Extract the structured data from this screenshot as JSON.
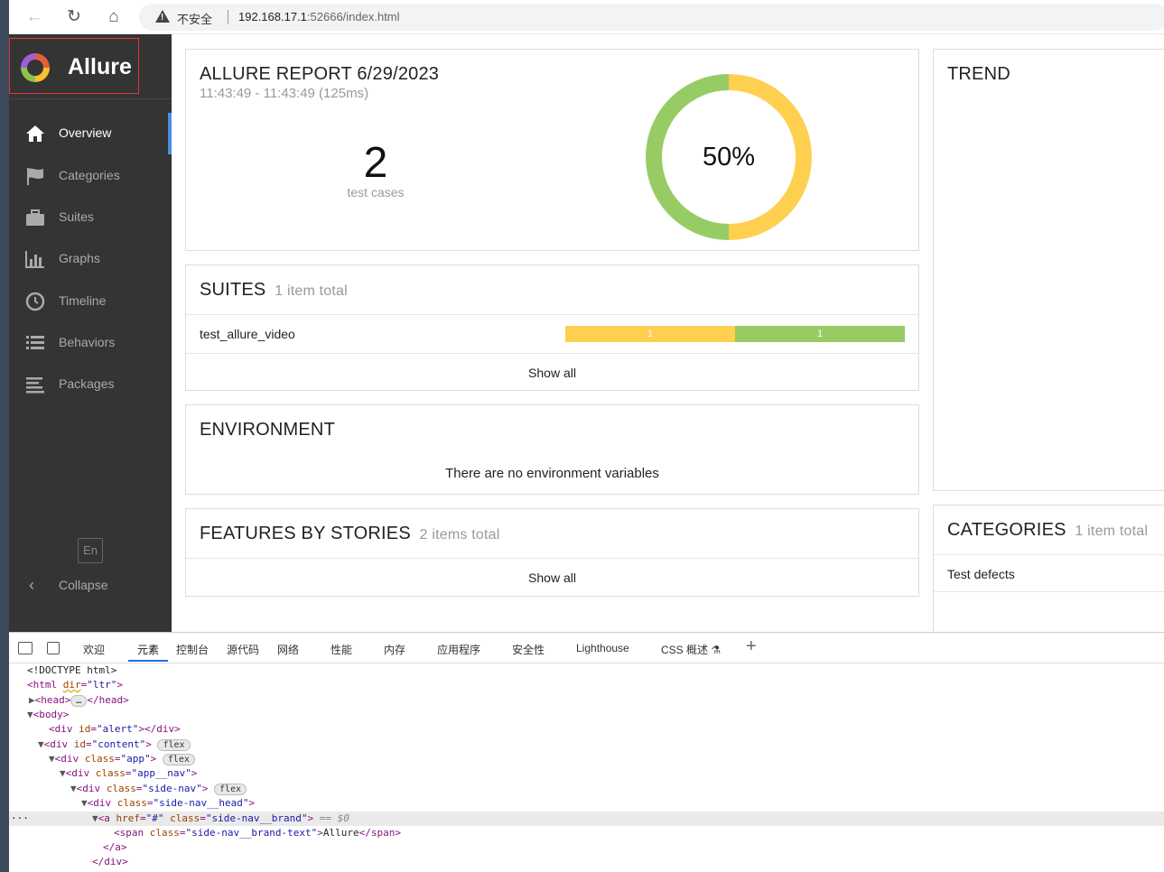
{
  "browser": {
    "insecure_label": "不安全",
    "url_host": "192.168.17.1",
    "url_rest": ":52666/index.html"
  },
  "sidebar": {
    "brand": "Allure",
    "items": [
      {
        "label": "Overview",
        "icon": "home-icon",
        "active": true
      },
      {
        "label": "Categories",
        "icon": "flag-icon"
      },
      {
        "label": "Suites",
        "icon": "briefcase-icon"
      },
      {
        "label": "Graphs",
        "icon": "bar-chart-icon"
      },
      {
        "label": "Timeline",
        "icon": "clock-icon"
      },
      {
        "label": "Behaviors",
        "icon": "list-icon"
      },
      {
        "label": "Packages",
        "icon": "align-left-icon"
      }
    ],
    "language": "En",
    "collapse_label": "Collapse"
  },
  "report": {
    "title": "ALLURE REPORT 6/29/2023",
    "subtitle": "11:43:49 - 11:43:49 (125ms)",
    "test_count": "2",
    "test_count_label": "test cases",
    "percent": "50%",
    "colors": {
      "passed": "#97cc64",
      "broken": "#ffd050"
    }
  },
  "suites": {
    "title": "SUITES",
    "count_label": "1 item total",
    "rows": [
      {
        "name": "test_allure_video",
        "broken": "1",
        "passed": "1"
      }
    ],
    "show_all": "Show all"
  },
  "environment": {
    "title": "ENVIRONMENT",
    "empty_text": "There are no environment variables"
  },
  "features": {
    "title": "FEATURES BY STORIES",
    "count_label": "2 items total",
    "show_all": "Show all"
  },
  "trend": {
    "title": "TREND"
  },
  "categories": {
    "title": "CATEGORIES",
    "count_label": "1 item total",
    "rows": [
      {
        "name": "Test defects"
      }
    ]
  },
  "devtools": {
    "tabs": [
      "欢迎",
      "元素",
      "控制台",
      "源代码",
      "网络",
      "性能",
      "内存",
      "应用程序",
      "安全性",
      "Lighthouse",
      "CSS 概述"
    ],
    "active_tab": "元素",
    "badge": "flex",
    "dollar": "== $0",
    "ellipsis": "…",
    "code": {
      "doctype": "<!DOCTYPE html>",
      "html_open": "<html",
      "dir_attr": "dir",
      "dir_val": "\"ltr\"",
      "head": "<head>",
      "head_close": "</head>",
      "body": "<body>",
      "div_open": "<div",
      "id_attr": "id",
      "class_attr": "class",
      "alert_val": "\"alert\"",
      "content_val": "\"content\"",
      "app_val": "\"app\"",
      "app_nav_val": "\"app__nav\"",
      "side_nav_val": "\"side-nav\"",
      "side_nav_head_val": "\"side-nav__head\"",
      "a_open": "<a",
      "href_attr": "href",
      "href_val": "\"#\"",
      "brand_val": "\"side-nav__brand\"",
      "span_open": "<span",
      "brand_text_val": "\"side-nav__brand-text\"",
      "brand_text": "Allure",
      "span_close": "</span>",
      "a_close": "</a>",
      "div_close": "</div>",
      "gt": ">",
      "eq": "="
    }
  }
}
